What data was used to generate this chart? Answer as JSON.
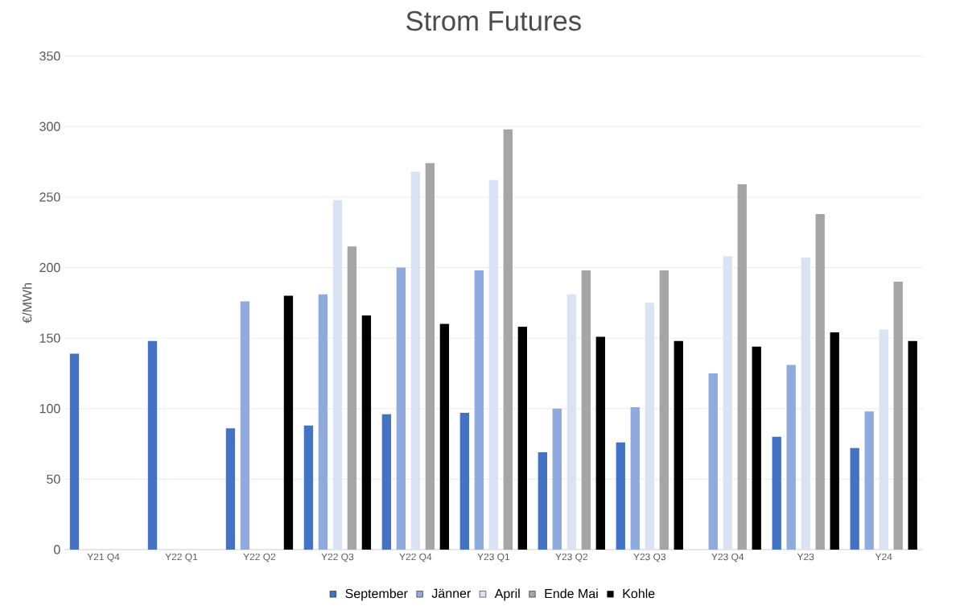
{
  "chart_data": {
    "type": "bar",
    "title": "Strom Futures",
    "ylabel": "€/MWh",
    "categories": [
      "Y21 Q4",
      "Y22 Q1",
      "Y22 Q2",
      "Y22 Q3",
      "Y22 Q4",
      "Y23 Q1",
      "Y23 Q2",
      "Y23 Q3",
      "Y23 Q4",
      "Y23",
      "Y24"
    ],
    "series": [
      {
        "name": "September",
        "color": "#4472c4",
        "values": [
          139,
          148,
          86,
          88,
          96,
          97,
          69,
          76,
          null,
          80,
          72
        ]
      },
      {
        "name": "Jänner",
        "color": "#8faadc",
        "values": [
          null,
          null,
          176,
          181,
          200,
          198,
          100,
          101,
          125,
          131,
          98
        ]
      },
      {
        "name": "April",
        "color": "#dae3f3",
        "values": [
          null,
          null,
          null,
          248,
          268,
          262,
          181,
          175,
          208,
          207,
          156
        ]
      },
      {
        "name": "Ende Mai",
        "color": "#a5a5a5",
        "values": [
          null,
          null,
          null,
          215,
          274,
          298,
          198,
          198,
          259,
          238,
          190
        ]
      },
      {
        "name": "Kohle",
        "color": "#000000",
        "values": [
          null,
          null,
          180,
          166,
          160,
          158,
          151,
          148,
          144,
          154,
          148
        ]
      }
    ],
    "ylim": [
      0,
      350
    ],
    "yticks": [
      0,
      50,
      100,
      150,
      200,
      250,
      300,
      350
    ],
    "grid": "y",
    "legend": "bottom"
  }
}
